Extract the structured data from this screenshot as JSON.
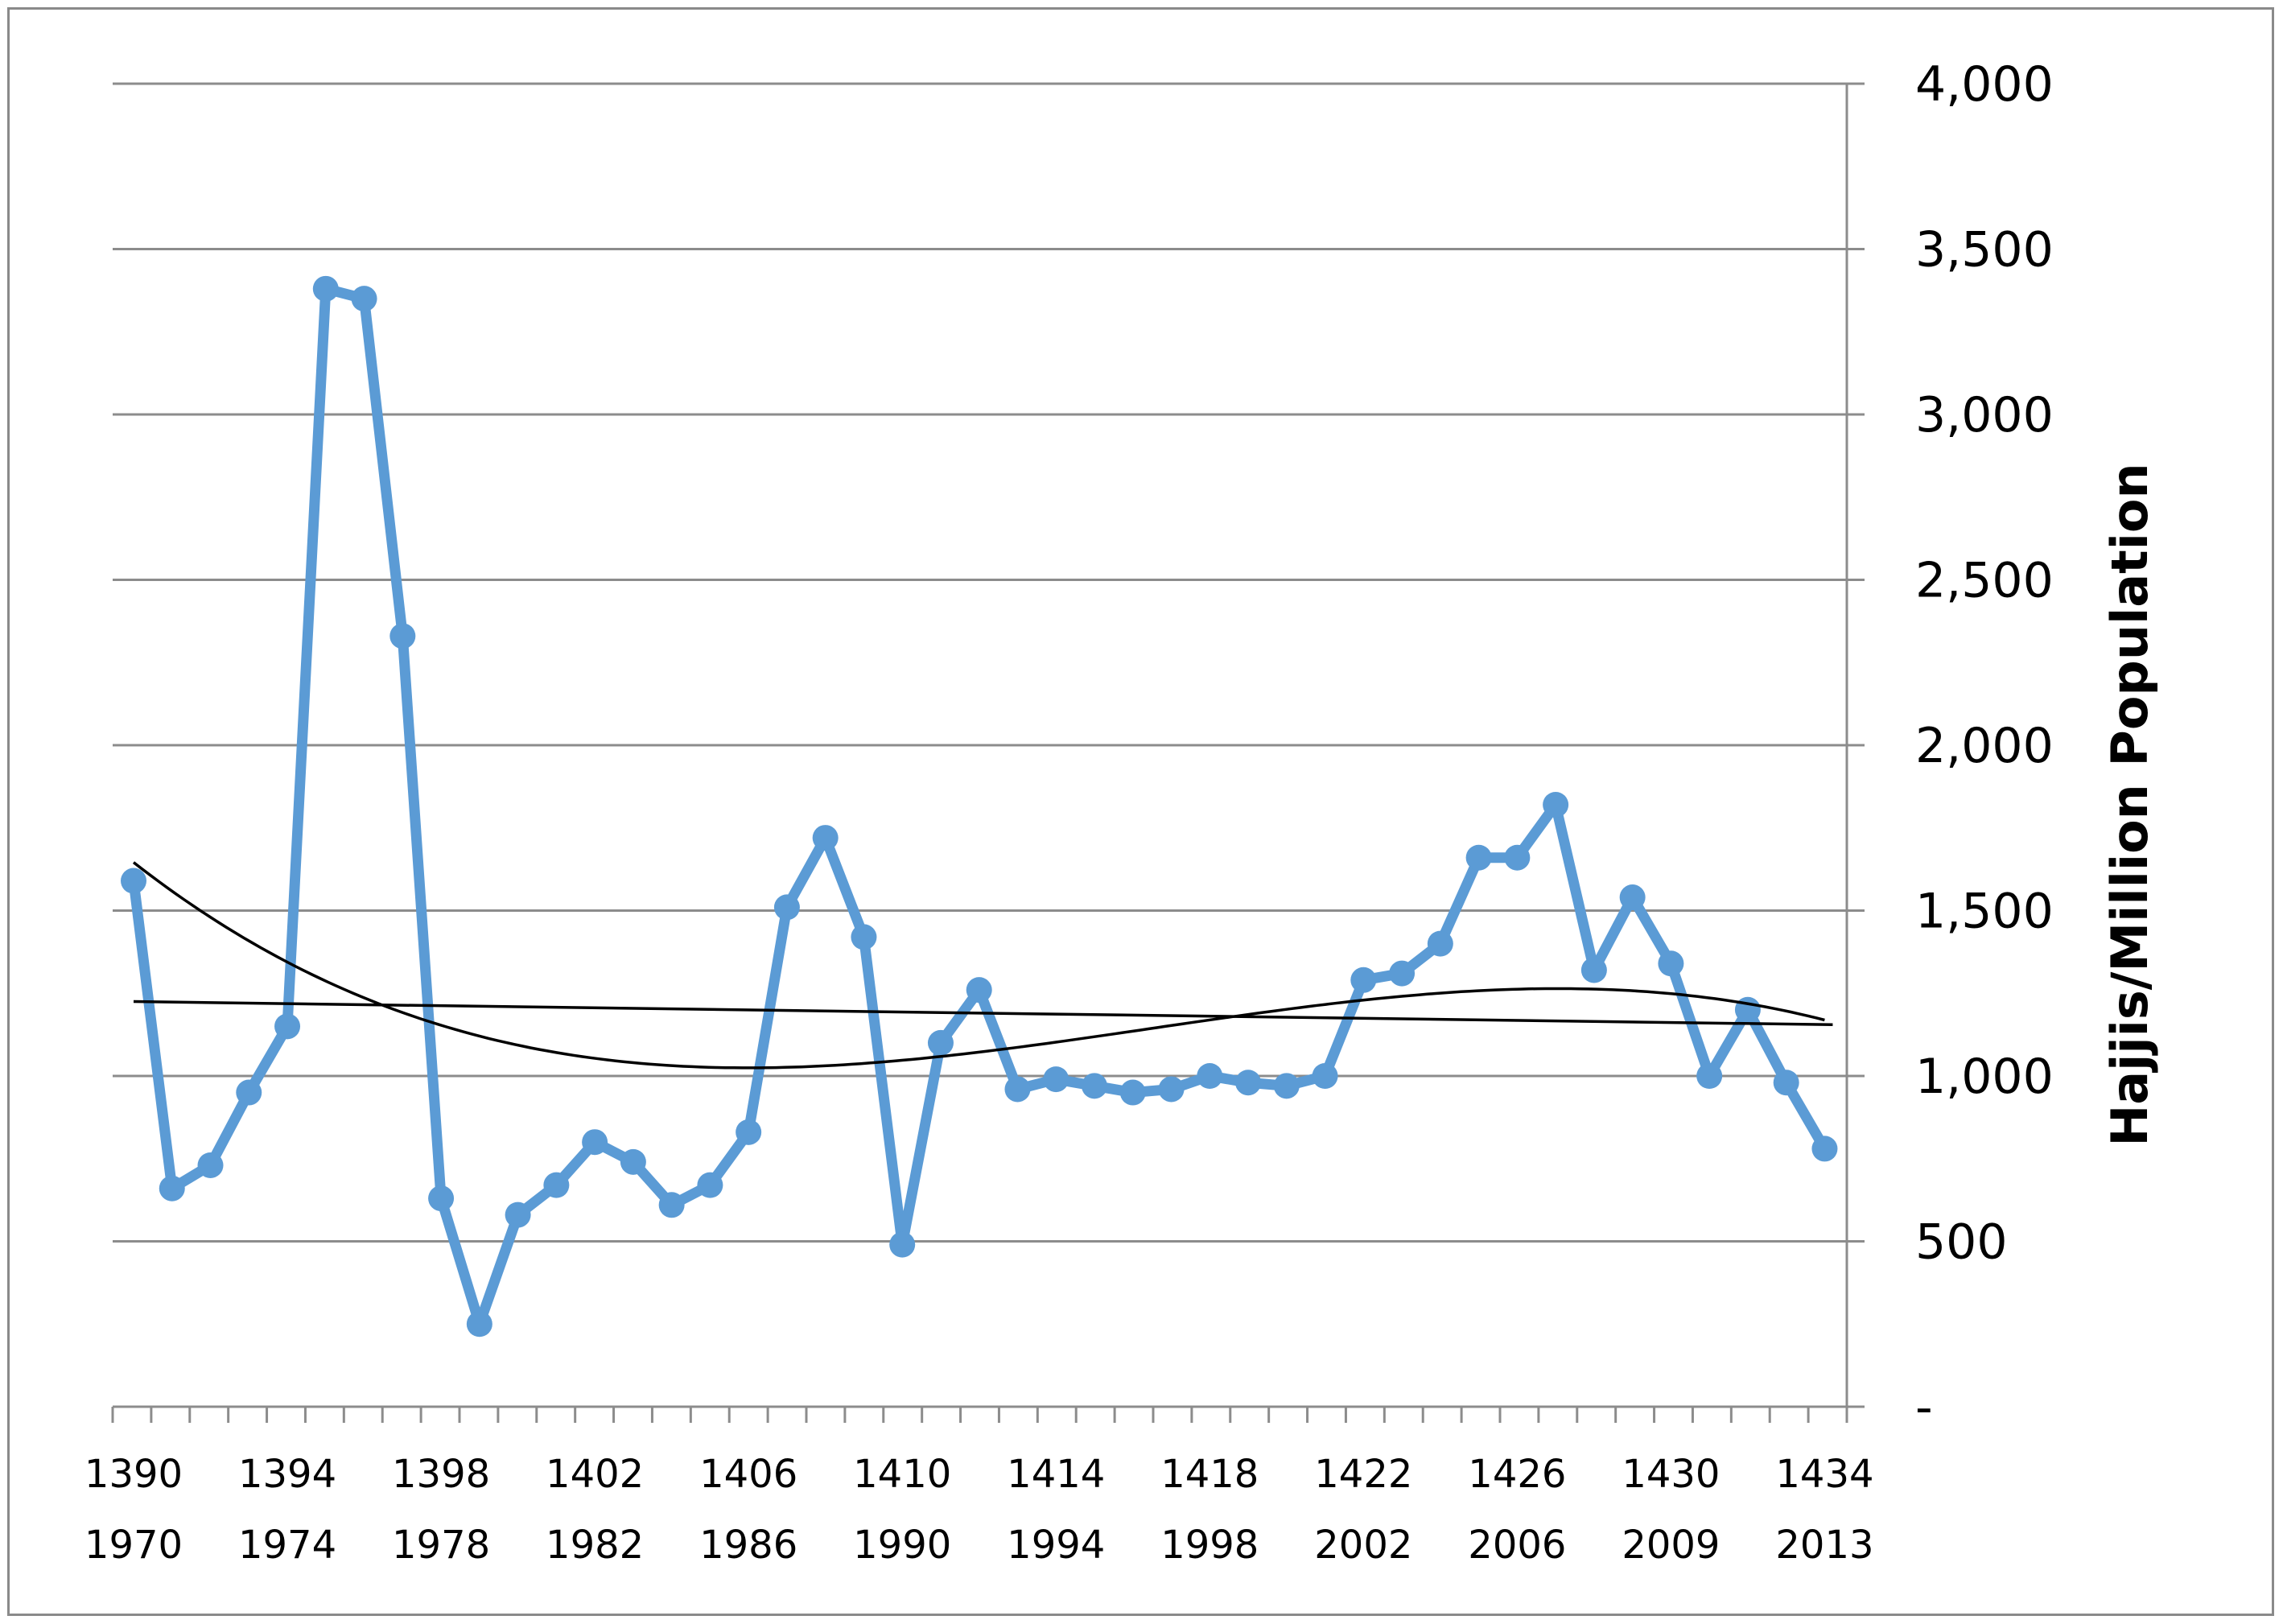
{
  "chart_data": {
    "type": "line",
    "title": "",
    "xlabel": "",
    "ylabel": "Hajjis/Million Population",
    "grid": true,
    "ylim": [
      0,
      4000
    ],
    "yticks": [
      {
        "value": 0,
        "label": "-"
      },
      {
        "value": 500,
        "label": "500"
      },
      {
        "value": 1000,
        "label": "1,000"
      },
      {
        "value": 1500,
        "label": "1,500"
      },
      {
        "value": 2000,
        "label": "2,000"
      },
      {
        "value": 2500,
        "label": "2,500"
      },
      {
        "value": 3000,
        "label": "3,000"
      },
      {
        "value": 3500,
        "label": "3,500"
      },
      {
        "value": 4000,
        "label": "4,000"
      }
    ],
    "xtick_labels": [
      {
        "index": 0,
        "hijri": "1390",
        "gregorian": "1970"
      },
      {
        "index": 4,
        "hijri": "1394",
        "gregorian": "1974"
      },
      {
        "index": 8,
        "hijri": "1398",
        "gregorian": "1978"
      },
      {
        "index": 12,
        "hijri": "1402",
        "gregorian": "1982"
      },
      {
        "index": 16,
        "hijri": "1406",
        "gregorian": "1986"
      },
      {
        "index": 20,
        "hijri": "1410",
        "gregorian": "1990"
      },
      {
        "index": 24,
        "hijri": "1414",
        "gregorian": "1994"
      },
      {
        "index": 28,
        "hijri": "1418",
        "gregorian": "1998"
      },
      {
        "index": 32,
        "hijri": "1422",
        "gregorian": "2002"
      },
      {
        "index": 36,
        "hijri": "1426",
        "gregorian": "2006"
      },
      {
        "index": 40,
        "hijri": "1430",
        "gregorian": "2009"
      },
      {
        "index": 44,
        "hijri": "1434",
        "gregorian": "2013"
      }
    ],
    "series": [
      {
        "color": "#5B9BD5",
        "x": [
          1390,
          1391,
          1392,
          1393,
          1394,
          1395,
          1396,
          1397,
          1398,
          1399,
          1400,
          1401,
          1402,
          1403,
          1404,
          1405,
          1406,
          1407,
          1408,
          1409,
          1410,
          1411,
          1412,
          1413,
          1414,
          1415,
          1416,
          1417,
          1418,
          1419,
          1420,
          1421,
          1422,
          1423,
          1424,
          1425,
          1426,
          1427,
          1428,
          1429,
          1430,
          1431,
          1432,
          1433,
          1434
        ],
        "values": [
          1590,
          660,
          730,
          950,
          1150,
          3380,
          3350,
          2330,
          630,
          250,
          580,
          670,
          800,
          740,
          610,
          670,
          830,
          1510,
          1720,
          1420,
          490,
          1100,
          1260,
          960,
          990,
          970,
          950,
          960,
          1000,
          980,
          970,
          1000,
          1290,
          1310,
          1400,
          1660,
          1660,
          1820,
          1320,
          1540,
          1340,
          1000,
          1200,
          980,
          780
        ]
      }
    ],
    "trendlines": [
      {
        "kind": "linear",
        "color": "#000000",
        "start": 1225,
        "end": 1155
      },
      {
        "kind": "polynomial",
        "color": "#000000"
      }
    ]
  }
}
